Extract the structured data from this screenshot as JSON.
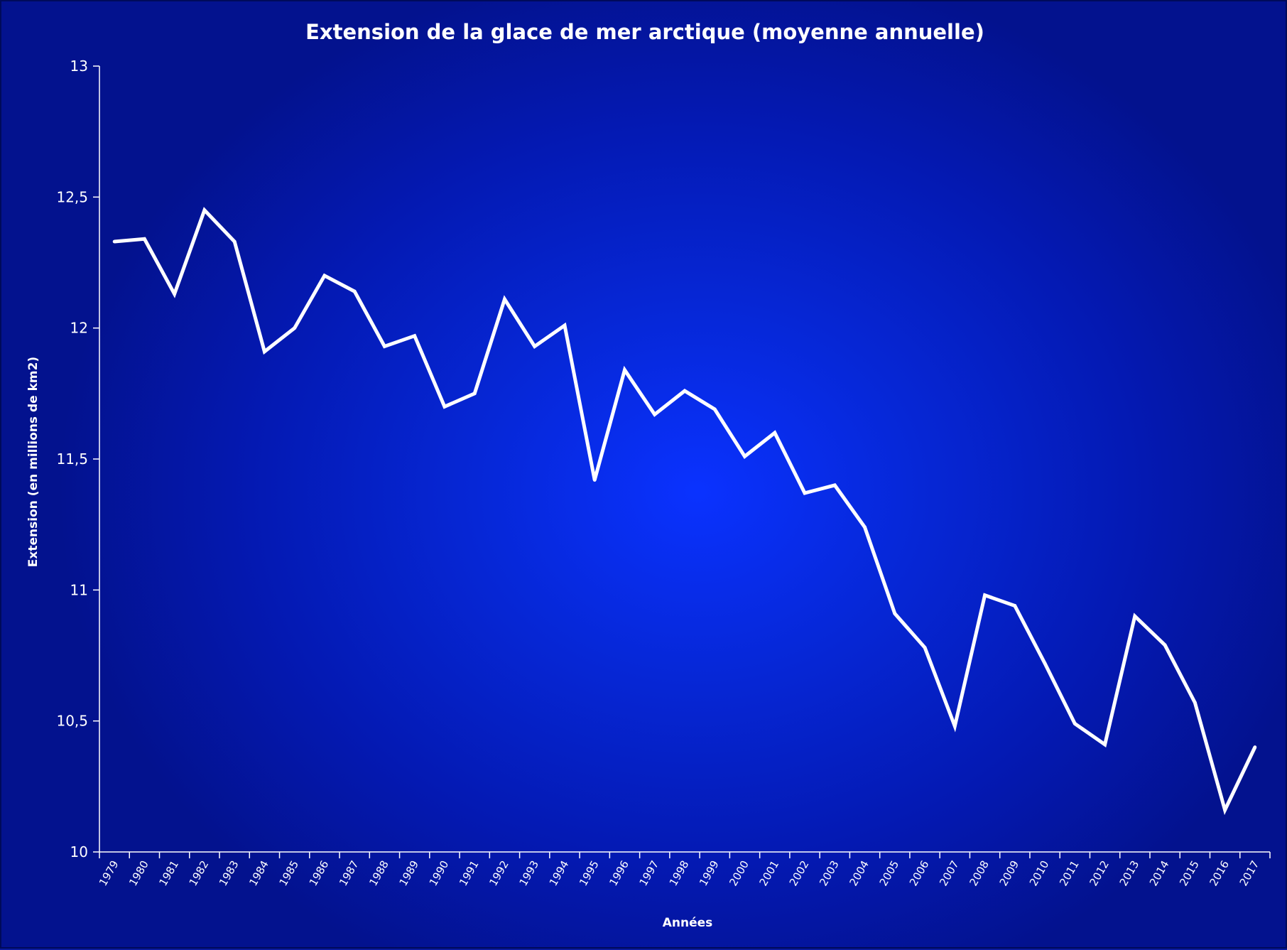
{
  "chart_data": {
    "type": "line",
    "title": "Extension de la glace de mer arctique (moyenne annuelle)",
    "xlabel": "Années",
    "ylabel": "Extension (en millions de km2)",
    "ylim": [
      10,
      13
    ],
    "yticks": [
      "10",
      "10,5",
      "11",
      "11,5",
      "12",
      "12,5",
      "13"
    ],
    "grid": false,
    "categories": [
      "1979",
      "1980",
      "1981",
      "1982",
      "1983",
      "1984",
      "1985",
      "1986",
      "1987",
      "1988",
      "1989",
      "1990",
      "1991",
      "1992",
      "1993",
      "1994",
      "1995",
      "1996",
      "1997",
      "1998",
      "1999",
      "2000",
      "2001",
      "2002",
      "2003",
      "2004",
      "2005",
      "2006",
      "2007",
      "2008",
      "2009",
      "2010",
      "2011",
      "2012",
      "2013",
      "2014",
      "2015",
      "2016",
      "2017"
    ],
    "series": [
      {
        "values": [
          12.33,
          12.34,
          12.13,
          12.45,
          12.33,
          11.91,
          12.0,
          12.2,
          12.14,
          11.93,
          11.97,
          11.7,
          11.75,
          12.11,
          11.93,
          12.01,
          11.42,
          11.84,
          11.67,
          11.76,
          11.69,
          11.51,
          11.6,
          11.37,
          11.4,
          11.24,
          10.91,
          10.78,
          10.48,
          10.98,
          10.94,
          10.72,
          10.49,
          10.41,
          10.9,
          10.79,
          10.57,
          10.16,
          10.4
        ],
        "color": "#ffffff"
      }
    ]
  },
  "colors": {
    "background_center": "#0a32ff",
    "background_edge": "#03128e",
    "line": "#ffffff",
    "axis": "#ffffff"
  }
}
